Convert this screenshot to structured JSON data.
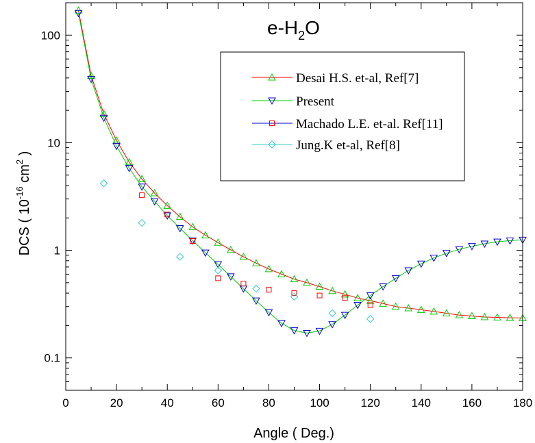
{
  "chart_data": {
    "type": "line",
    "title": "e-H",
    "title_subscript": "2",
    "title_suffix": "O",
    "xlabel": "Angle ( Deg.)",
    "ylabel_prefix": "DCS ( 10",
    "ylabel_exp1": "-16",
    "ylabel_mid": " cm",
    "ylabel_exp2": "2",
    "ylabel_suffix": " )",
    "x_range": [
      0,
      180
    ],
    "y_range": [
      0.05,
      200
    ],
    "y_scale": "log",
    "grid": false,
    "legend_placement": "top-right",
    "x_ticks": [
      0,
      20,
      40,
      60,
      80,
      100,
      120,
      140,
      160,
      180
    ],
    "y_ticks": [
      {
        "value": 0.1,
        "label": "0.1"
      },
      {
        "value": 1,
        "label": "1"
      },
      {
        "value": 10,
        "label": "10"
      },
      {
        "value": 100,
        "label": "100"
      }
    ],
    "series": [
      {
        "name": "Desai H.S. et-al, Ref[7]",
        "marker": "triangle-up",
        "marker_color": "#00cc00",
        "line_color": "#ff0000",
        "has_line": true,
        "x": [
          5,
          10,
          15,
          20,
          25,
          30,
          35,
          40,
          45,
          50,
          55,
          60,
          65,
          70,
          75,
          80,
          85,
          90,
          95,
          100,
          105,
          110,
          115,
          120,
          125,
          130,
          135,
          140,
          145,
          150,
          155,
          160,
          165,
          170,
          175,
          180
        ],
        "y": [
          170,
          42,
          18.5,
          10.5,
          6.6,
          4.6,
          3.4,
          2.6,
          2.05,
          1.65,
          1.38,
          1.18,
          1.01,
          0.87,
          0.76,
          0.67,
          0.6,
          0.54,
          0.5,
          0.46,
          0.42,
          0.39,
          0.36,
          0.34,
          0.32,
          0.3,
          0.29,
          0.28,
          0.27,
          0.26,
          0.25,
          0.245,
          0.24,
          0.238,
          0.236,
          0.235
        ]
      },
      {
        "name": "Present",
        "marker": "triangle-down",
        "marker_color": "#0000cc",
        "line_color": "#00cc00",
        "has_line": true,
        "x": [
          5,
          10,
          15,
          20,
          25,
          30,
          35,
          40,
          45,
          50,
          55,
          60,
          65,
          70,
          75,
          80,
          85,
          90,
          95,
          100,
          105,
          110,
          115,
          120,
          125,
          130,
          135,
          140,
          145,
          150,
          155,
          160,
          165,
          170,
          175,
          180
        ],
        "y": [
          160,
          39,
          17,
          9.3,
          5.8,
          3.9,
          2.85,
          2.1,
          1.6,
          1.23,
          0.95,
          0.74,
          0.57,
          0.44,
          0.34,
          0.265,
          0.21,
          0.18,
          0.17,
          0.178,
          0.205,
          0.25,
          0.31,
          0.38,
          0.46,
          0.55,
          0.65,
          0.75,
          0.85,
          0.94,
          1.02,
          1.09,
          1.15,
          1.2,
          1.23,
          1.25
        ]
      },
      {
        "name": "Machado L.E. et-al. Ref[11]",
        "marker": "square",
        "marker_color": "#ff0000",
        "line_color": "#0000cc",
        "has_line": false,
        "x": [
          30,
          40,
          50,
          60,
          70,
          80,
          90,
          100,
          110,
          120
        ],
        "y": [
          3.25,
          2.15,
          1.22,
          0.55,
          0.49,
          0.43,
          0.4,
          0.38,
          0.36,
          0.31
        ]
      },
      {
        "name": "Jung.K et-al, Ref[8]",
        "marker": "diamond",
        "marker_color": "#33cccc",
        "line_color": "#33cccc",
        "has_line": false,
        "x": [
          15,
          30,
          45,
          60,
          75,
          90,
          105,
          120
        ],
        "y": [
          4.2,
          1.8,
          0.87,
          0.65,
          0.44,
          0.37,
          0.26,
          0.23
        ]
      }
    ]
  }
}
